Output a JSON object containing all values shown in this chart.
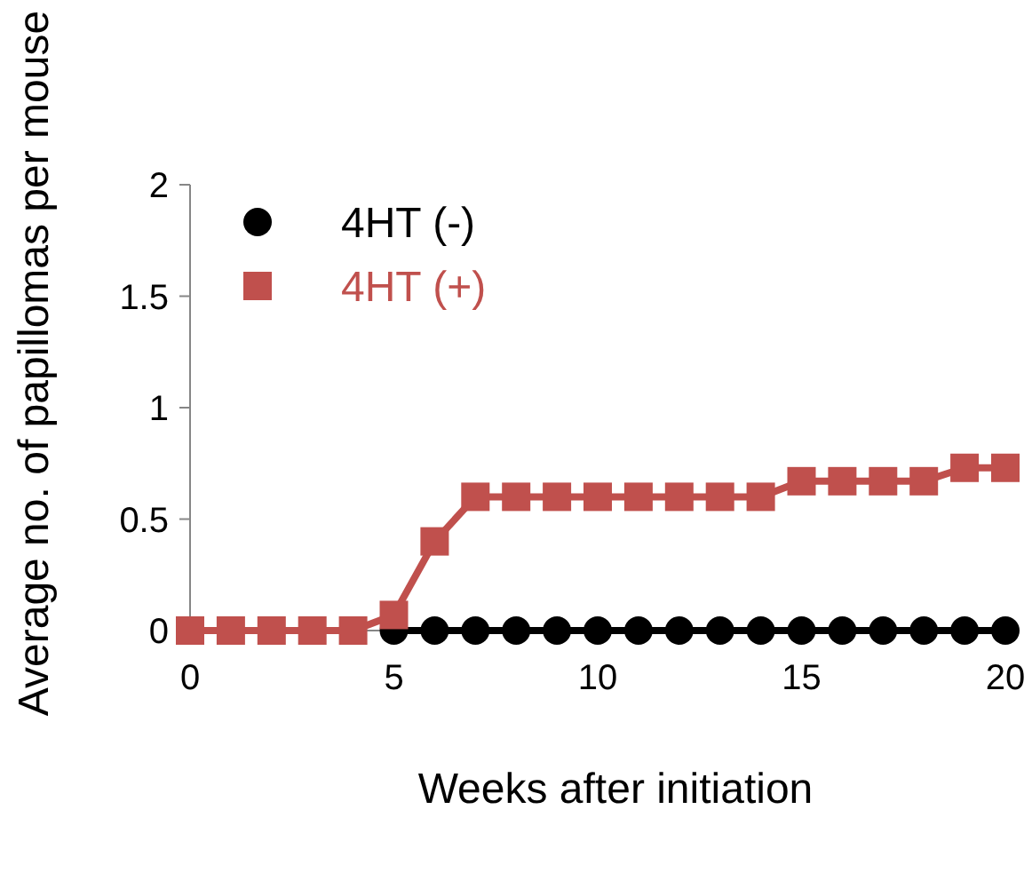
{
  "chart_data": {
    "type": "line",
    "xlabel": "Weeks after initiation",
    "ylabel": "Average no. of papillomas per mouse",
    "x": [
      0,
      1,
      2,
      3,
      4,
      5,
      6,
      7,
      8,
      9,
      10,
      11,
      12,
      13,
      14,
      15,
      16,
      17,
      18,
      19,
      20
    ],
    "series": [
      {
        "name": "4HT (-)",
        "color": "#000000",
        "marker": "circle",
        "values": [
          null,
          null,
          null,
          null,
          null,
          0,
          0,
          0,
          0,
          0,
          0,
          0,
          0,
          0,
          0,
          0,
          0,
          0,
          0,
          0,
          0
        ]
      },
      {
        "name": "4HT (+)",
        "color": "#c0504d",
        "marker": "square",
        "values": [
          0,
          0,
          0,
          0,
          0,
          0.07,
          0.4,
          0.6,
          0.6,
          0.6,
          0.6,
          0.6,
          0.6,
          0.6,
          0.6,
          0.67,
          0.67,
          0.67,
          0.67,
          0.73,
          0.73
        ]
      }
    ],
    "xlim": [
      0,
      20
    ],
    "xticks": [
      0,
      5,
      10,
      15,
      20
    ],
    "ylim": [
      0,
      2
    ],
    "yticks": [
      0,
      0.5,
      1,
      1.5,
      2
    ],
    "grid": false,
    "legend": "top left"
  }
}
